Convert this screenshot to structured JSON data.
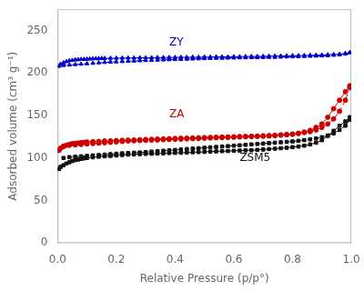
{
  "chart_data": {
    "type": "line",
    "xlabel": "Relative Pressure (p/p°)",
    "ylabel": "Adsorbed volume (cm³ g⁻¹)",
    "xlim": [
      0.0,
      1.0
    ],
    "ylim": [
      0,
      275
    ],
    "xticks": [
      {
        "value": 0.0,
        "label": "0.0"
      },
      0.2,
      0.4,
      0.6,
      0.8,
      {
        "value": 1.0,
        "label": "1.0"
      }
    ],
    "yticks": [
      0,
      50,
      100,
      150,
      200,
      250
    ],
    "grid": false,
    "series": [
      {
        "color": "#0000cc",
        "line_style": "solid",
        "marker": "triangle",
        "x": [
          0.005,
          0.01,
          0.02,
          0.03,
          0.04,
          0.05,
          0.06,
          0.07,
          0.08,
          0.09,
          0.1,
          0.11,
          0.12,
          0.13,
          0.14,
          0.15,
          0.16,
          0.18,
          0.2,
          0.22,
          0.24,
          0.26,
          0.28,
          0.3,
          0.32,
          0.34,
          0.36,
          0.38,
          0.4,
          0.42,
          0.44,
          0.46,
          0.48,
          0.5,
          0.52,
          0.54,
          0.56,
          0.58,
          0.6,
          0.62,
          0.64,
          0.66,
          0.68,
          0.7,
          0.72,
          0.74,
          0.76,
          0.78,
          0.8,
          0.82,
          0.84,
          0.86,
          0.88,
          0.9,
          0.92,
          0.94,
          0.96,
          0.98,
          0.995
        ],
        "values": [
          208.0,
          210.5,
          212.0,
          213.5,
          214.5,
          215.0,
          215.5,
          215.8,
          216.0,
          216.2,
          216.4,
          216.6,
          216.8,
          217.0,
          217.0,
          217.2,
          217.2,
          217.4,
          217.5,
          217.6,
          217.8,
          217.8,
          218.0,
          218.0,
          218.0,
          218.2,
          218.2,
          218.4,
          218.4,
          218.5,
          218.5,
          218.6,
          218.6,
          218.8,
          218.8,
          219.0,
          219.0,
          219.0,
          219.2,
          219.2,
          219.4,
          219.5,
          219.5,
          219.6,
          219.8,
          220.0,
          220.0,
          220.2,
          220.4,
          220.5,
          220.6,
          220.8,
          221.0,
          221.2,
          221.5,
          221.8,
          222.2,
          223.0,
          224.0
        ]
      },
      {
        "color": "#0000cc",
        "line_style": "dashed",
        "marker": "triangle",
        "x": [
          0.995,
          0.98,
          0.96,
          0.94,
          0.92,
          0.9,
          0.88,
          0.86,
          0.84,
          0.82,
          0.8,
          0.78,
          0.76,
          0.74,
          0.72,
          0.7,
          0.68,
          0.66,
          0.64,
          0.62,
          0.6,
          0.58,
          0.56,
          0.54,
          0.52,
          0.5,
          0.48,
          0.46,
          0.44,
          0.42,
          0.4,
          0.38,
          0.36,
          0.34,
          0.32,
          0.3,
          0.28,
          0.26,
          0.24,
          0.22,
          0.2,
          0.18,
          0.16,
          0.14,
          0.12,
          0.1,
          0.08,
          0.06,
          0.04,
          0.02
        ],
        "values": [
          224.0,
          222.5,
          221.5,
          221.0,
          220.5,
          220.2,
          220.0,
          219.8,
          219.6,
          219.4,
          219.2,
          219.0,
          218.8,
          218.6,
          218.5,
          218.4,
          218.2,
          218.2,
          218.0,
          218.0,
          217.8,
          217.6,
          217.5,
          217.4,
          217.2,
          217.0,
          216.8,
          216.6,
          216.4,
          216.2,
          216.0,
          215.8,
          215.5,
          215.2,
          215.0,
          214.8,
          214.5,
          214.2,
          214.0,
          213.6,
          213.2,
          213.0,
          212.5,
          212.0,
          211.5,
          211.0,
          210.5,
          210.0,
          209.5,
          209.0
        ]
      },
      {
        "color": "#cc0000",
        "line_style": "solid",
        "marker": "circle",
        "x": [
          0.005,
          0.01,
          0.02,
          0.03,
          0.04,
          0.05,
          0.06,
          0.07,
          0.08,
          0.09,
          0.1,
          0.12,
          0.14,
          0.16,
          0.18,
          0.2,
          0.22,
          0.24,
          0.26,
          0.28,
          0.3,
          0.32,
          0.34,
          0.36,
          0.38,
          0.4,
          0.42,
          0.44,
          0.46,
          0.48,
          0.5,
          0.52,
          0.54,
          0.56,
          0.58,
          0.6,
          0.62,
          0.64,
          0.66,
          0.68,
          0.7,
          0.72,
          0.74,
          0.76,
          0.78,
          0.8,
          0.82,
          0.84,
          0.86,
          0.88,
          0.9,
          0.92,
          0.94,
          0.96,
          0.98,
          0.995
        ],
        "values": [
          109.0,
          111.5,
          113.5,
          115.0,
          116.0,
          116.8,
          117.2,
          117.6,
          118.0,
          118.4,
          118.8,
          119.2,
          119.6,
          120.0,
          120.2,
          120.5,
          120.8,
          121.0,
          121.2,
          121.5,
          121.8,
          122.0,
          122.2,
          122.5,
          122.8,
          123.0,
          123.2,
          123.4,
          123.6,
          123.8,
          124.0,
          124.2,
          124.4,
          124.6,
          124.8,
          125.0,
          125.2,
          125.4,
          125.6,
          125.8,
          126.0,
          126.3,
          126.6,
          127.0,
          127.5,
          128.0,
          129.0,
          130.5,
          132.5,
          136.0,
          140.0,
          148.0,
          158.0,
          168.0,
          178.0,
          185.0
        ]
      },
      {
        "color": "#cc0000",
        "line_style": "dashed",
        "marker": "circle",
        "x": [
          0.995,
          0.98,
          0.96,
          0.94,
          0.92,
          0.9,
          0.88,
          0.86,
          0.84,
          0.82,
          0.8,
          0.78,
          0.76,
          0.74,
          0.72,
          0.7,
          0.68,
          0.66,
          0.64,
          0.62,
          0.6,
          0.58,
          0.56,
          0.54,
          0.52,
          0.5,
          0.48,
          0.46,
          0.44,
          0.42,
          0.4,
          0.38,
          0.36,
          0.34,
          0.32,
          0.3,
          0.28,
          0.26,
          0.24,
          0.22,
          0.2,
          0.18,
          0.16,
          0.14,
          0.12,
          0.1,
          0.08,
          0.06,
          0.04,
          0.02
        ],
        "values": [
          183.0,
          168.0,
          155.0,
          146.0,
          140.0,
          136.0,
          133.0,
          131.0,
          130.0,
          129.0,
          128.0,
          127.5,
          127.0,
          126.5,
          126.0,
          125.8,
          125.5,
          125.2,
          125.0,
          124.8,
          124.5,
          124.2,
          124.0,
          123.8,
          123.5,
          123.2,
          123.0,
          122.8,
          122.5,
          122.2,
          122.0,
          121.8,
          121.5,
          121.2,
          121.0,
          120.8,
          120.5,
          120.2,
          120.0,
          119.5,
          119.0,
          118.5,
          118.0,
          117.5,
          117.0,
          116.5,
          116.0,
          115.5,
          115.0,
          114.0
        ]
      },
      {
        "color": "#111111",
        "line_style": "solid",
        "marker": "square",
        "x": [
          0.005,
          0.01,
          0.02,
          0.03,
          0.04,
          0.05,
          0.06,
          0.07,
          0.08,
          0.09,
          0.1,
          0.12,
          0.14,
          0.16,
          0.18,
          0.2,
          0.22,
          0.24,
          0.26,
          0.28,
          0.3,
          0.32,
          0.34,
          0.36,
          0.38,
          0.4,
          0.42,
          0.44,
          0.46,
          0.48,
          0.5,
          0.52,
          0.54,
          0.56,
          0.58,
          0.6,
          0.62,
          0.64,
          0.66,
          0.68,
          0.7,
          0.72,
          0.74,
          0.76,
          0.78,
          0.8,
          0.82,
          0.84,
          0.86,
          0.88,
          0.9,
          0.92,
          0.94,
          0.96,
          0.98,
          0.995
        ],
        "values": [
          87.0,
          89.5,
          91.5,
          93.5,
          95.0,
          96.5,
          97.5,
          98.2,
          99.0,
          99.5,
          100.0,
          100.8,
          101.5,
          102.0,
          102.5,
          103.0,
          103.5,
          104.0,
          104.2,
          104.5,
          104.8,
          105.0,
          105.2,
          105.5,
          105.8,
          106.0,
          106.2,
          106.5,
          106.8,
          107.0,
          107.2,
          107.5,
          107.8,
          108.0,
          108.2,
          108.5,
          108.8,
          109.0,
          109.2,
          109.5,
          110.0,
          110.5,
          111.0,
          111.5,
          112.0,
          112.8,
          113.5,
          114.5,
          116.0,
          118.0,
          121.0,
          126.0,
          132.0,
          138.0,
          143.0,
          148.0
        ]
      },
      {
        "color": "#111111",
        "line_style": "dashed",
        "marker": "square",
        "x": [
          0.995,
          0.98,
          0.96,
          0.94,
          0.92,
          0.9,
          0.88,
          0.86,
          0.84,
          0.82,
          0.8,
          0.78,
          0.76,
          0.74,
          0.72,
          0.7,
          0.68,
          0.66,
          0.64,
          0.62,
          0.6,
          0.58,
          0.56,
          0.54,
          0.52,
          0.5,
          0.48,
          0.46,
          0.44,
          0.42,
          0.4,
          0.38,
          0.36,
          0.34,
          0.32,
          0.3,
          0.28,
          0.26,
          0.24,
          0.22,
          0.2,
          0.18,
          0.16,
          0.14,
          0.12,
          0.1,
          0.08,
          0.06,
          0.04,
          0.02
        ],
        "values": [
          145.0,
          138.0,
          133.0,
          129.0,
          126.5,
          124.5,
          123.0,
          122.0,
          121.0,
          120.2,
          119.5,
          119.0,
          118.5,
          118.0,
          117.5,
          117.0,
          116.5,
          116.0,
          115.5,
          115.0,
          114.5,
          114.0,
          113.5,
          113.0,
          112.5,
          112.0,
          111.5,
          111.0,
          110.5,
          110.0,
          109.5,
          109.0,
          108.5,
          108.0,
          107.5,
          107.0,
          106.5,
          106.2,
          105.8,
          105.5,
          105.0,
          104.5,
          104.0,
          103.5,
          103.0,
          102.5,
          102.0,
          101.5,
          101.0,
          100.0
        ]
      }
    ],
    "annotations": [
      {
        "text": "ZY",
        "x": 0.38,
        "y": 232,
        "color": "#0000cc"
      },
      {
        "text": "ZA",
        "x": 0.38,
        "y": 148,
        "color": "#cc0000"
      },
      {
        "text": "ZSM5",
        "x": 0.62,
        "y": 96,
        "color": "#111111"
      }
    ]
  }
}
